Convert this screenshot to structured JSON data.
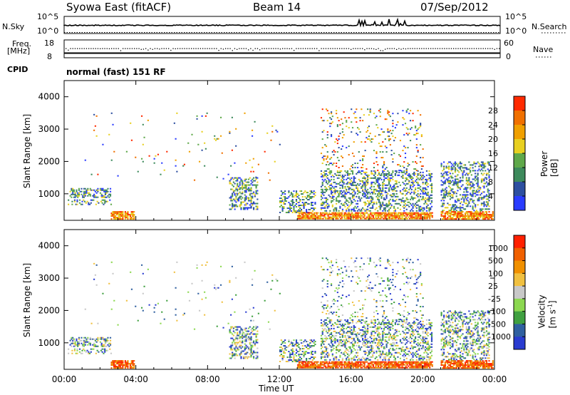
{
  "header": {
    "station": "Syowa East (fitACF)",
    "beam": "Beam 14",
    "date": "07/Sep/2012"
  },
  "panels": {
    "nsky_label": "N.Sky",
    "nsearch_label": "N.Search",
    "freq_label": "Freq.",
    "freq_unit": "[MHz]",
    "nave_label": "Nave",
    "cpid_label": "CPID",
    "cpid_value": "normal (fast) 151 RF",
    "noise_ticks": [
      "10^5",
      "10^0"
    ],
    "noise_ticks_right": [
      "10^5",
      "10^0"
    ],
    "freq_ticks": [
      "18",
      "8"
    ],
    "nave_ticks": [
      "60",
      "0"
    ]
  },
  "colors": {
    "power": [
      "#2a3cff",
      "#2d4fa0",
      "#3d8a5c",
      "#5fa84a",
      "#e8d020",
      "#f0a000",
      "#f07000",
      "#ff2a00"
    ],
    "velocity": [
      "#ff2000",
      "#f06000",
      "#f09000",
      "#f0c040",
      "#c8c8c8",
      "#8cd850",
      "#40a040",
      "#3060a0",
      "#2a3cd0"
    ],
    "ground": "#9a9a9a"
  },
  "chart_data": [
    {
      "type": "heatmap",
      "title": "",
      "quantity": "Power",
      "xlabel": "",
      "ylabel": "Slant Range [km]",
      "x_ticks": [
        "00:00",
        "04:00",
        "08:00",
        "12:00",
        "16:00",
        "20:00",
        "00:00"
      ],
      "y_ticks": [
        "1000",
        "2000",
        "3000",
        "4000"
      ],
      "ylim": [
        180,
        4500
      ],
      "xlim_hours": [
        0,
        24
      ],
      "colorbar": {
        "label": "Power [dB]",
        "ticks": [
          "4",
          "8",
          "12",
          "16",
          "20",
          "24",
          "28"
        ],
        "range": [
          0,
          30
        ]
      }
    },
    {
      "type": "heatmap",
      "title": "",
      "quantity": "Velocity",
      "xlabel": "Time UT",
      "ylabel": "Slant Range [km]",
      "x_ticks": [
        "00:00",
        "04:00",
        "08:00",
        "12:00",
        "16:00",
        "20:00",
        "00:00"
      ],
      "y_ticks": [
        "1000",
        "2000",
        "3000",
        "4000"
      ],
      "ylim": [
        180,
        4500
      ],
      "xlim_hours": [
        0,
        24
      ],
      "colorbar": {
        "label": "Velocity [m s^-1]",
        "ticks": [
          "1000",
          "500",
          "100",
          "25",
          "-25",
          "-100",
          "-500",
          "-1000"
        ]
      }
    }
  ]
}
